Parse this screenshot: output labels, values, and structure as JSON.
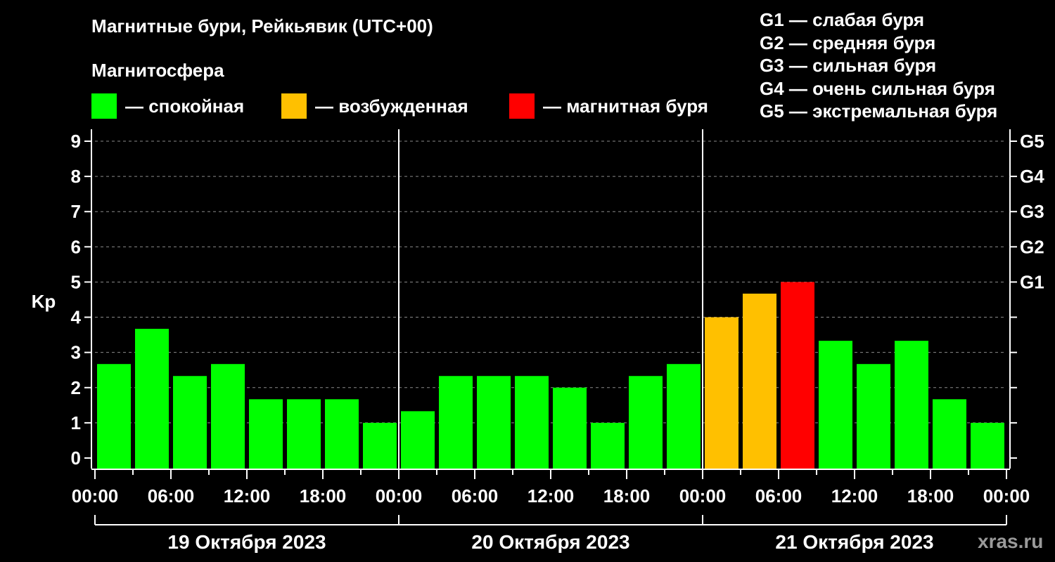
{
  "title": "Магнитные бури, Рейкьявик (UTC+00)",
  "subtitle": "Магнитосфера",
  "legend": [
    {
      "label": "— спокойная",
      "color": "#00ff00"
    },
    {
      "label": "— возбужденная",
      "color": "#ffc000"
    },
    {
      "label": "— магнитная буря",
      "color": "#ff0000"
    }
  ],
  "storm_scale": [
    "G1 — слабая буря",
    "G2 — средняя буря",
    "G3 — сильная буря",
    "G4 — очень сильная буря",
    "G5 — экстремальная буря"
  ],
  "watermark": "xras.ru",
  "chart_data": {
    "type": "bar",
    "ylabel": "Kp",
    "ylim": [
      0,
      9
    ],
    "yticks": [
      "0",
      "1",
      "2",
      "3",
      "4",
      "5",
      "6",
      "7",
      "8",
      "9"
    ],
    "right_ticks": [
      {
        "value": 5,
        "label": "G1"
      },
      {
        "value": 6,
        "label": "G2"
      },
      {
        "value": 7,
        "label": "G3"
      },
      {
        "value": 8,
        "label": "G4"
      },
      {
        "value": 9,
        "label": "G5"
      }
    ],
    "grid": "dashed horizontal",
    "xtick_labels": [
      "00:00",
      "06:00",
      "12:00",
      "18:00",
      "00:00",
      "06:00",
      "12:00",
      "18:00",
      "00:00",
      "06:00",
      "12:00",
      "18:00",
      "00:00"
    ],
    "days": [
      "19 Октября 2023",
      "20 Октября 2023",
      "21 Октября 2023"
    ],
    "interval_hours": 3,
    "values": [
      2.67,
      3.67,
      2.33,
      2.67,
      1.67,
      1.67,
      1.67,
      1.0,
      1.33,
      2.33,
      2.33,
      2.33,
      2.0,
      1.0,
      2.33,
      2.67,
      4.0,
      4.67,
      5.0,
      3.33,
      2.67,
      3.33,
      1.67,
      1.0
    ],
    "colors": {
      "quiet": "#00ff00",
      "active": "#ffc000",
      "storm": "#ff0000"
    }
  }
}
